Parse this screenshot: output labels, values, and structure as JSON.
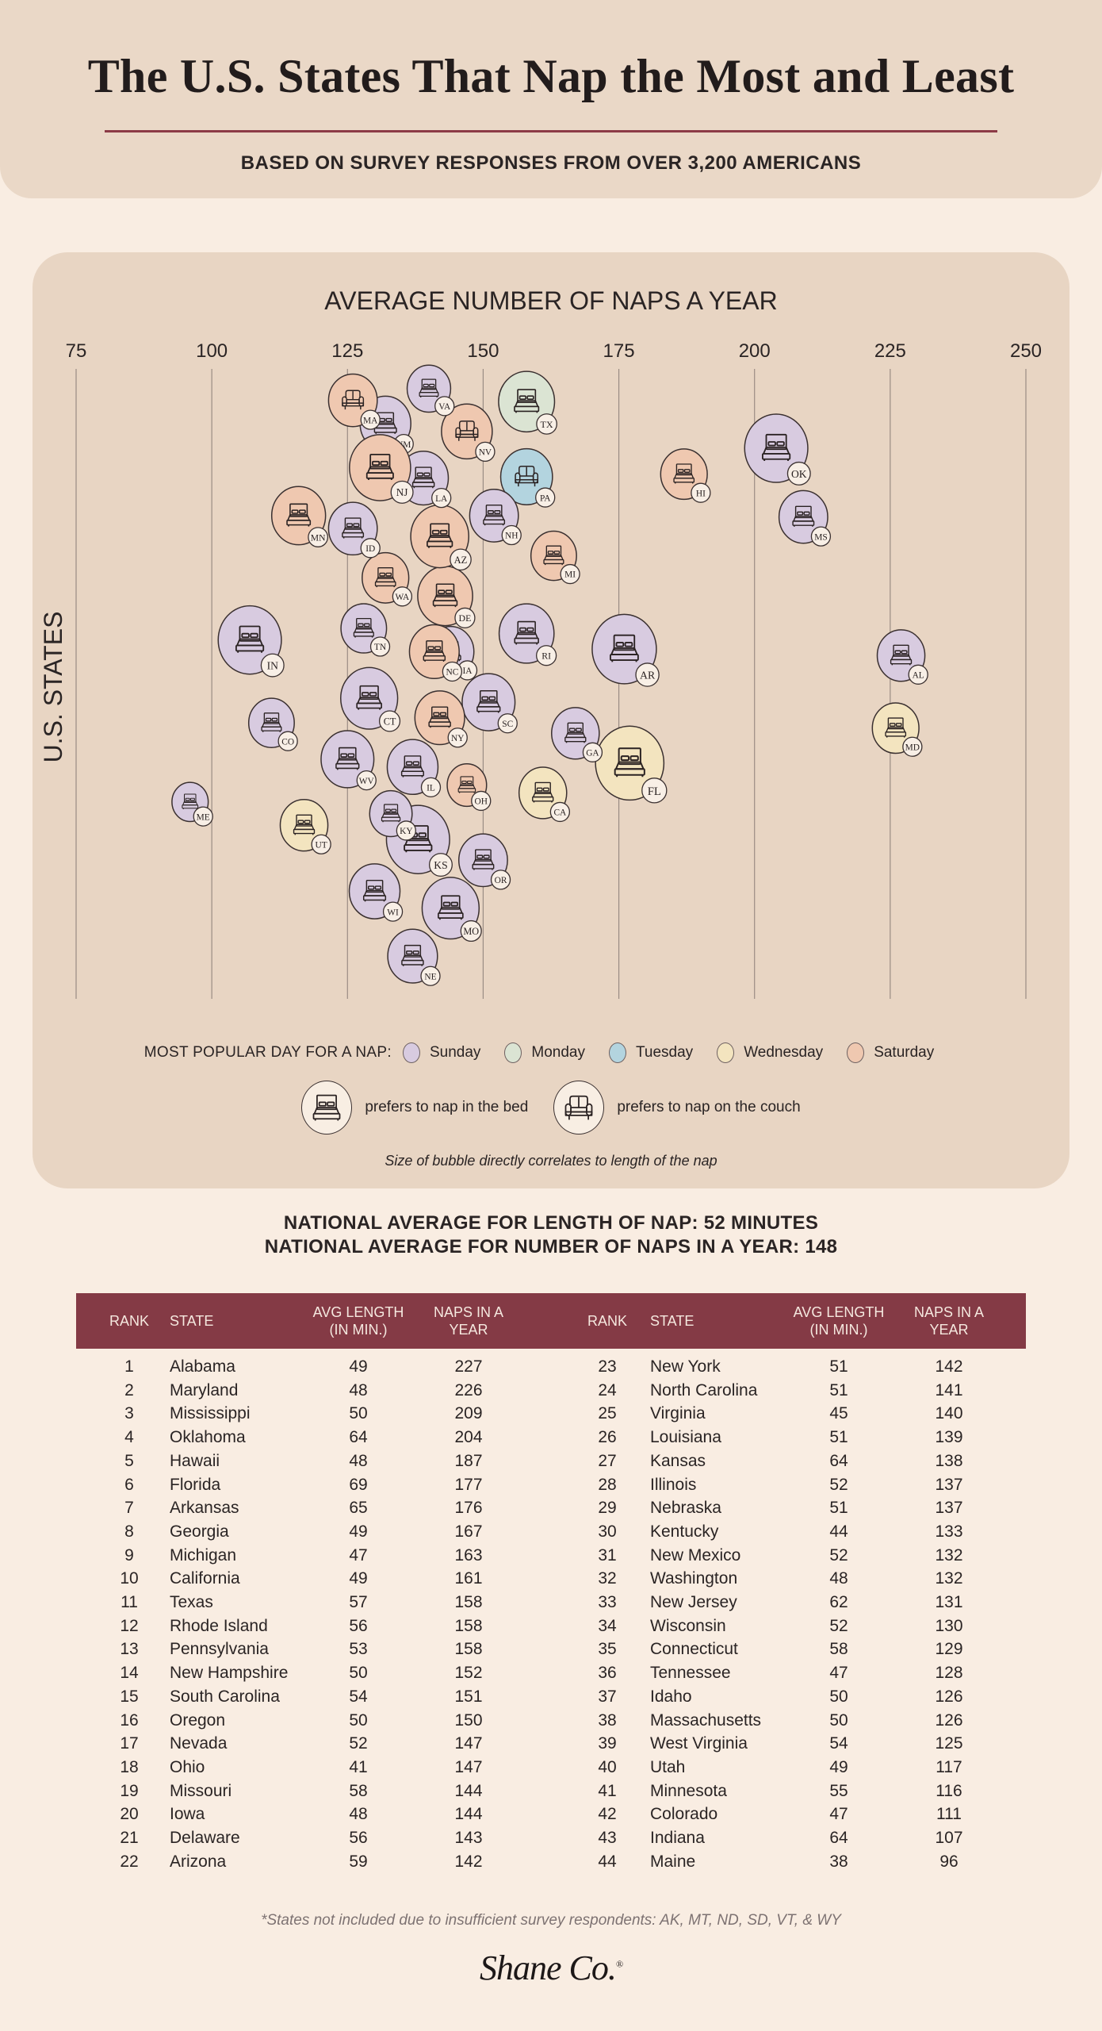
{
  "header": {
    "title": "The U.S. States That Nap the Most and Least",
    "subtitle": "BASED ON SURVEY RESPONSES FROM OVER 3,200 AMERICANS"
  },
  "colors": {
    "accent": "#843a45",
    "Sunday": "#d8cbe0",
    "Monday": "#dbe4d3",
    "Tuesday": "#b3d4df",
    "Wednesday": "#f3e4bf",
    "Saturday": "#efc8b0"
  },
  "chart_data": {
    "type": "scatter",
    "title": "AVERAGE NUMBER OF NAPS A YEAR",
    "ylabel": "U.S. STATES",
    "xlim": [
      75,
      250
    ],
    "xticks": [
      "75",
      "100",
      "125",
      "150",
      "175",
      "200",
      "225",
      "250"
    ],
    "grid": "vertical",
    "size_encoding": "avg nap length (min)",
    "points": [
      {
        "state": "AL",
        "naps": 227,
        "length": 49,
        "day": "Sunday",
        "prefers": "bed"
      },
      {
        "state": "MD",
        "naps": 226,
        "length": 48,
        "day": "Wednesday",
        "prefers": "bed"
      },
      {
        "state": "MS",
        "naps": 209,
        "length": 50,
        "day": "Sunday",
        "prefers": "bed"
      },
      {
        "state": "OK",
        "naps": 204,
        "length": 64,
        "day": "Sunday",
        "prefers": "bed"
      },
      {
        "state": "HI",
        "naps": 187,
        "length": 48,
        "day": "Saturday",
        "prefers": "bed"
      },
      {
        "state": "FL",
        "naps": 177,
        "length": 69,
        "day": "Wednesday",
        "prefers": "bed"
      },
      {
        "state": "AR",
        "naps": 176,
        "length": 65,
        "day": "Sunday",
        "prefers": "bed"
      },
      {
        "state": "GA",
        "naps": 167,
        "length": 49,
        "day": "Sunday",
        "prefers": "bed"
      },
      {
        "state": "MI",
        "naps": 163,
        "length": 47,
        "day": "Saturday",
        "prefers": "bed"
      },
      {
        "state": "CA",
        "naps": 161,
        "length": 49,
        "day": "Wednesday",
        "prefers": "bed"
      },
      {
        "state": "TX",
        "naps": 158,
        "length": 57,
        "day": "Monday",
        "prefers": "bed"
      },
      {
        "state": "RI",
        "naps": 158,
        "length": 56,
        "day": "Sunday",
        "prefers": "bed"
      },
      {
        "state": "PA",
        "naps": 158,
        "length": 53,
        "day": "Tuesday",
        "prefers": "couch"
      },
      {
        "state": "NH",
        "naps": 152,
        "length": 50,
        "day": "Sunday",
        "prefers": "bed"
      },
      {
        "state": "SC",
        "naps": 151,
        "length": 54,
        "day": "Sunday",
        "prefers": "bed"
      },
      {
        "state": "OR",
        "naps": 150,
        "length": 50,
        "day": "Sunday",
        "prefers": "bed"
      },
      {
        "state": "NV",
        "naps": 147,
        "length": 52,
        "day": "Saturday",
        "prefers": "couch"
      },
      {
        "state": "OH",
        "naps": 147,
        "length": 41,
        "day": "Saturday",
        "prefers": "bed"
      },
      {
        "state": "MO",
        "naps": 144,
        "length": 58,
        "day": "Sunday",
        "prefers": "bed"
      },
      {
        "state": "IA",
        "naps": 144,
        "length": 48,
        "day": "Sunday",
        "prefers": "bed"
      },
      {
        "state": "DE",
        "naps": 143,
        "length": 56,
        "day": "Saturday",
        "prefers": "bed"
      },
      {
        "state": "AZ",
        "naps": 142,
        "length": 59,
        "day": "Saturday",
        "prefers": "bed"
      },
      {
        "state": "NY",
        "naps": 142,
        "length": 51,
        "day": "Saturday",
        "prefers": "bed"
      },
      {
        "state": "NC",
        "naps": 141,
        "length": 51,
        "day": "Saturday",
        "prefers": "bed"
      },
      {
        "state": "VA",
        "naps": 140,
        "length": 45,
        "day": "Sunday",
        "prefers": "bed"
      },
      {
        "state": "LA",
        "naps": 139,
        "length": 51,
        "day": "Sunday",
        "prefers": "bed"
      },
      {
        "state": "KS",
        "naps": 138,
        "length": 64,
        "day": "Sunday",
        "prefers": "bed"
      },
      {
        "state": "IL",
        "naps": 137,
        "length": 52,
        "day": "Sunday",
        "prefers": "bed"
      },
      {
        "state": "NE",
        "naps": 137,
        "length": 51,
        "day": "Sunday",
        "prefers": "bed"
      },
      {
        "state": "KY",
        "naps": 133,
        "length": 44,
        "day": "Sunday",
        "prefers": "bed"
      },
      {
        "state": "NM",
        "naps": 132,
        "length": 52,
        "day": "Sunday",
        "prefers": "bed"
      },
      {
        "state": "WA",
        "naps": 132,
        "length": 48,
        "day": "Saturday",
        "prefers": "bed"
      },
      {
        "state": "NJ",
        "naps": 131,
        "length": 62,
        "day": "Saturday",
        "prefers": "bed"
      },
      {
        "state": "WI",
        "naps": 130,
        "length": 52,
        "day": "Sunday",
        "prefers": "bed"
      },
      {
        "state": "CT",
        "naps": 129,
        "length": 58,
        "day": "Sunday",
        "prefers": "bed"
      },
      {
        "state": "TN",
        "naps": 128,
        "length": 47,
        "day": "Sunday",
        "prefers": "bed"
      },
      {
        "state": "ID",
        "naps": 126,
        "length": 50,
        "day": "Sunday",
        "prefers": "bed"
      },
      {
        "state": "MA",
        "naps": 126,
        "length": 50,
        "day": "Saturday",
        "prefers": "couch"
      },
      {
        "state": "WV",
        "naps": 125,
        "length": 54,
        "day": "Sunday",
        "prefers": "bed"
      },
      {
        "state": "UT",
        "naps": 117,
        "length": 49,
        "day": "Wednesday",
        "prefers": "bed"
      },
      {
        "state": "MN",
        "naps": 116,
        "length": 55,
        "day": "Saturday",
        "prefers": "bed"
      },
      {
        "state": "CO",
        "naps": 111,
        "length": 47,
        "day": "Sunday",
        "prefers": "bed"
      },
      {
        "state": "IN",
        "naps": 107,
        "length": 64,
        "day": "Sunday",
        "prefers": "bed"
      },
      {
        "state": "ME",
        "naps": 96,
        "length": 38,
        "day": "Sunday",
        "prefers": "bed"
      }
    ]
  },
  "legend": {
    "day_label": "MOST POPULAR DAY FOR A NAP:",
    "days": [
      "Sunday",
      "Monday",
      "Tuesday",
      "Wednesday",
      "Saturday"
    ],
    "bed_label": "prefers to nap in the bed",
    "couch_label": "prefers to nap on the couch",
    "note": "Size of bubble directly correlates to length of the nap"
  },
  "national": {
    "length": "NATIONAL AVERAGE FOR LENGTH OF NAP: 52 MINUTES",
    "count": "NATIONAL AVERAGE FOR NUMBER OF NAPS IN A YEAR: 148"
  },
  "table": {
    "headers": {
      "rank": "RANK",
      "state": "STATE",
      "length_1": "AVG LENGTH",
      "length_2": "(IN MIN.)",
      "naps_1": "NAPS IN A",
      "naps_2": "YEAR"
    },
    "rows": [
      [
        "1",
        "Alabama",
        "49",
        "227"
      ],
      [
        "2",
        "Maryland",
        "48",
        "226"
      ],
      [
        "3",
        "Mississippi",
        "50",
        "209"
      ],
      [
        "4",
        "Oklahoma",
        "64",
        "204"
      ],
      [
        "5",
        "Hawaii",
        "48",
        "187"
      ],
      [
        "6",
        "Florida",
        "69",
        "177"
      ],
      [
        "7",
        "Arkansas",
        "65",
        "176"
      ],
      [
        "8",
        "Georgia",
        "49",
        "167"
      ],
      [
        "9",
        "Michigan",
        "47",
        "163"
      ],
      [
        "10",
        "California",
        "49",
        "161"
      ],
      [
        "11",
        "Texas",
        "57",
        "158"
      ],
      [
        "12",
        "Rhode Island",
        "56",
        "158"
      ],
      [
        "13",
        "Pennsylvania",
        "53",
        "158"
      ],
      [
        "14",
        "New Hampshire",
        "50",
        "152"
      ],
      [
        "15",
        "South Carolina",
        "54",
        "151"
      ],
      [
        "16",
        "Oregon",
        "50",
        "150"
      ],
      [
        "17",
        "Nevada",
        "52",
        "147"
      ],
      [
        "18",
        "Ohio",
        "41",
        "147"
      ],
      [
        "19",
        "Missouri",
        "58",
        "144"
      ],
      [
        "20",
        "Iowa",
        "48",
        "144"
      ],
      [
        "21",
        "Delaware",
        "56",
        "143"
      ],
      [
        "22",
        "Arizona",
        "59",
        "142"
      ],
      [
        "23",
        "New York",
        "51",
        "142"
      ],
      [
        "24",
        "North Carolina",
        "51",
        "141"
      ],
      [
        "25",
        "Virginia",
        "45",
        "140"
      ],
      [
        "26",
        "Louisiana",
        "51",
        "139"
      ],
      [
        "27",
        "Kansas",
        "64",
        "138"
      ],
      [
        "28",
        "Illinois",
        "52",
        "137"
      ],
      [
        "29",
        "Nebraska",
        "51",
        "137"
      ],
      [
        "30",
        "Kentucky",
        "44",
        "133"
      ],
      [
        "31",
        "New Mexico",
        "52",
        "132"
      ],
      [
        "32",
        "Washington",
        "48",
        "132"
      ],
      [
        "33",
        "New Jersey",
        "62",
        "131"
      ],
      [
        "34",
        "Wisconsin",
        "52",
        "130"
      ],
      [
        "35",
        "Connecticut",
        "58",
        "129"
      ],
      [
        "36",
        "Tennessee",
        "47",
        "128"
      ],
      [
        "37",
        "Idaho",
        "50",
        "126"
      ],
      [
        "38",
        "Massachusetts",
        "50",
        "126"
      ],
      [
        "39",
        "West Virginia",
        "54",
        "125"
      ],
      [
        "40",
        "Utah",
        "49",
        "117"
      ],
      [
        "41",
        "Minnesota",
        "55",
        "116"
      ],
      [
        "42",
        "Colorado",
        "47",
        "111"
      ],
      [
        "43",
        "Indiana",
        "64",
        "107"
      ],
      [
        "44",
        "Maine",
        "38",
        "96"
      ]
    ]
  },
  "footnote": "*States not included due to insufficient survey respondents: AK, MT, ND, SD, VT, & WY",
  "brand": {
    "logo": "Shane Co.",
    "mark": "®"
  }
}
